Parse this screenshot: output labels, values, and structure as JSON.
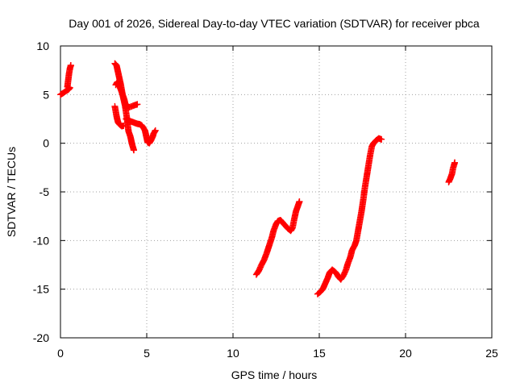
{
  "chart_data": {
    "type": "scatter",
    "title": "Day 001 of 2026, Sidereal Day-to-day VTEC variation (SDTVAR) for receiver pbca",
    "xlabel": "GPS time / hours",
    "ylabel": "SDTVAR / TECUs",
    "xlim": [
      0,
      25
    ],
    "ylim": [
      -20,
      10
    ],
    "xticks": [
      0,
      5,
      10,
      15,
      20,
      25
    ],
    "yticks": [
      -20,
      -15,
      -10,
      -5,
      0,
      5,
      10
    ],
    "xtick_labels": [
      "0",
      "5",
      "10",
      "15",
      "20",
      "25"
    ],
    "ytick_labels": [
      "-20",
      "-15",
      "-10",
      "-5",
      "0",
      "5",
      "10"
    ],
    "grid": true,
    "marker": "plus",
    "series": [
      {
        "name": "SDTVAR",
        "color": "#ff0000",
        "segments": [
          [
            [
              0.0,
              5.0
            ],
            [
              0.15,
              5.15
            ],
            [
              0.3,
              5.35
            ],
            [
              0.45,
              5.5
            ],
            [
              0.55,
              5.7
            ],
            [
              0.4,
              5.8
            ],
            [
              0.45,
              6.5
            ],
            [
              0.5,
              7.2
            ],
            [
              0.55,
              7.7
            ],
            [
              0.6,
              8.0
            ]
          ],
          [
            [
              3.15,
              8.2
            ],
            [
              3.25,
              8.0
            ],
            [
              3.3,
              7.6
            ],
            [
              3.35,
              7.2
            ],
            [
              3.4,
              6.8
            ],
            [
              3.45,
              6.4
            ],
            [
              3.5,
              6.0
            ],
            [
              3.55,
              5.5
            ],
            [
              3.6,
              5.0
            ],
            [
              3.65,
              4.6
            ],
            [
              3.7,
              4.2
            ],
            [
              3.75,
              3.8
            ],
            [
              3.8,
              3.2
            ],
            [
              3.85,
              2.6
            ],
            [
              3.9,
              1.8
            ],
            [
              3.95,
              1.2
            ],
            [
              4.05,
              0.7
            ],
            [
              4.1,
              0.3
            ],
            [
              4.15,
              -0.1
            ],
            [
              4.2,
              -0.4
            ],
            [
              4.25,
              -0.7
            ]
          ],
          [
            [
              3.2,
              6.0
            ],
            [
              3.3,
              6.3
            ],
            [
              3.4,
              5.9
            ],
            [
              3.5,
              5.5
            ],
            [
              3.6,
              5.0
            ],
            [
              3.7,
              4.5
            ],
            [
              3.75,
              4.1
            ],
            [
              3.85,
              3.8
            ],
            [
              4.0,
              3.7
            ],
            [
              4.2,
              3.85
            ],
            [
              4.45,
              4.0
            ]
          ],
          [
            [
              3.15,
              3.8
            ],
            [
              3.2,
              3.3
            ],
            [
              3.25,
              2.8
            ],
            [
              3.3,
              2.4
            ],
            [
              3.35,
              2.1
            ],
            [
              3.45,
              1.9
            ],
            [
              3.55,
              1.75
            ],
            [
              3.65,
              1.8
            ]
          ],
          [
            [
              3.8,
              2.5
            ],
            [
              3.9,
              2.4
            ],
            [
              4.0,
              2.3
            ],
            [
              4.15,
              2.2
            ],
            [
              4.3,
              2.1
            ],
            [
              4.45,
              2.0
            ],
            [
              4.6,
              1.95
            ],
            [
              4.7,
              1.85
            ],
            [
              4.8,
              1.6
            ],
            [
              4.9,
              1.3
            ],
            [
              4.95,
              0.9
            ],
            [
              5.0,
              0.5
            ],
            [
              5.05,
              0.1
            ],
            [
              5.15,
              0.0
            ],
            [
              5.25,
              0.3
            ],
            [
              5.35,
              0.7
            ],
            [
              5.4,
              1.0
            ],
            [
              5.5,
              1.3
            ]
          ],
          [
            [
              11.35,
              -13.5
            ],
            [
              11.5,
              -13.1
            ],
            [
              11.65,
              -12.5
            ],
            [
              11.8,
              -12.0
            ],
            [
              11.95,
              -11.3
            ],
            [
              12.1,
              -10.5
            ],
            [
              12.25,
              -9.7
            ],
            [
              12.35,
              -9.0
            ],
            [
              12.5,
              -8.3
            ],
            [
              12.6,
              -8.0
            ],
            [
              12.75,
              -7.9
            ],
            [
              12.9,
              -8.2
            ],
            [
              13.05,
              -8.5
            ],
            [
              13.2,
              -8.8
            ],
            [
              13.35,
              -9.0
            ],
            [
              13.45,
              -8.7
            ],
            [
              13.55,
              -7.8
            ],
            [
              13.65,
              -7.0
            ],
            [
              13.75,
              -6.5
            ],
            [
              13.85,
              -6.0
            ]
          ],
          [
            [
              14.9,
              -15.5
            ],
            [
              15.05,
              -15.3
            ],
            [
              15.2,
              -15.0
            ],
            [
              15.3,
              -14.6
            ],
            [
              15.4,
              -14.2
            ],
            [
              15.5,
              -13.8
            ],
            [
              15.6,
              -13.3
            ],
            [
              15.75,
              -13.0
            ],
            [
              15.9,
              -13.2
            ],
            [
              16.0,
              -13.4
            ],
            [
              16.1,
              -13.7
            ],
            [
              16.25,
              -14.0
            ],
            [
              16.4,
              -13.6
            ],
            [
              16.55,
              -13.0
            ],
            [
              16.65,
              -12.4
            ],
            [
              16.8,
              -11.7
            ],
            [
              16.9,
              -11.0
            ],
            [
              17.05,
              -10.5
            ],
            [
              17.15,
              -10.0
            ],
            [
              17.25,
              -9.0
            ],
            [
              17.35,
              -8.0
            ],
            [
              17.45,
              -7.0
            ],
            [
              17.55,
              -5.8
            ],
            [
              17.65,
              -4.5
            ],
            [
              17.75,
              -3.4
            ],
            [
              17.85,
              -2.3
            ],
            [
              17.95,
              -1.2
            ],
            [
              18.05,
              -0.3
            ],
            [
              18.15,
              0.0
            ],
            [
              18.3,
              0.3
            ],
            [
              18.45,
              0.5
            ],
            [
              18.6,
              0.4
            ]
          ],
          [
            [
              22.5,
              -4.0
            ],
            [
              22.6,
              -3.6
            ],
            [
              22.7,
              -3.1
            ],
            [
              22.75,
              -2.6
            ],
            [
              22.85,
              -2.0
            ]
          ]
        ]
      }
    ]
  }
}
